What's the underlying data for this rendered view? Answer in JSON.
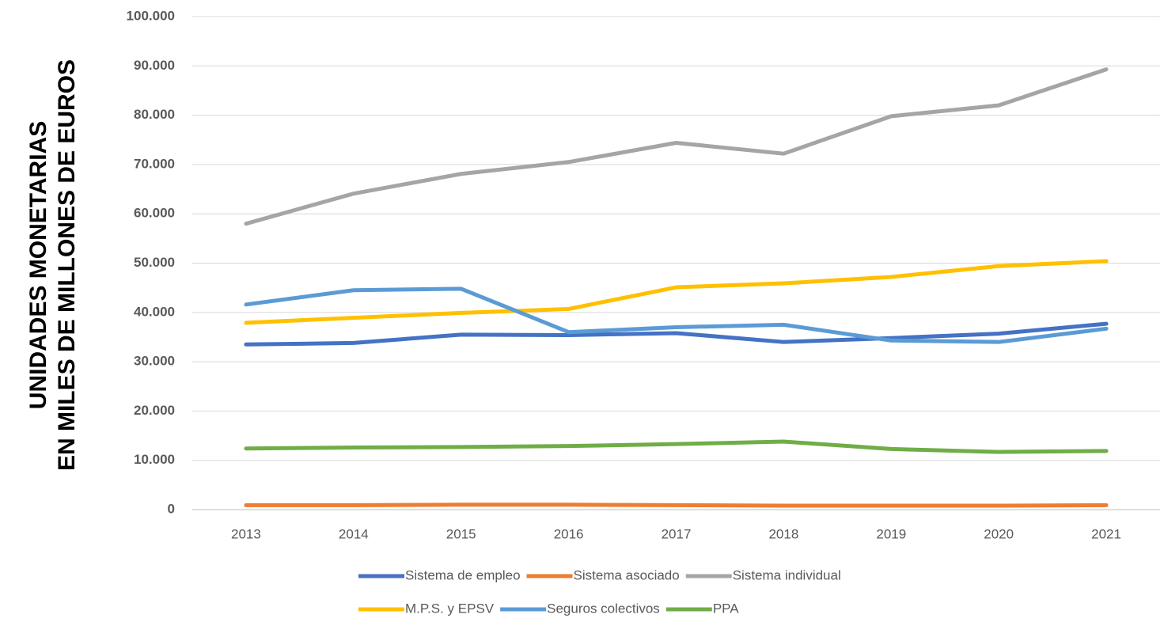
{
  "chart_data": {
    "type": "line",
    "y_label": [
      "UNIDADES  MONETARIAS",
      "EN MILES  DE  MILLONES  DE  EUROS"
    ],
    "categories": [
      "2013",
      "2014",
      "2015",
      "2016",
      "2017",
      "2018",
      "2019",
      "2020",
      "2021"
    ],
    "series": [
      {
        "name": "Sistema de empleo",
        "color": "#4472c4",
        "values": [
          33500,
          33800,
          35500,
          35400,
          35800,
          34000,
          34800,
          35700,
          37700
        ]
      },
      {
        "name": "Sistema asociado",
        "color": "#ed7d31",
        "values": [
          900,
          900,
          1000,
          1000,
          900,
          800,
          800,
          800,
          900
        ]
      },
      {
        "name": "Sistema individual",
        "color": "#a5a5a5",
        "values": [
          58000,
          64100,
          68100,
          70500,
          74400,
          72200,
          79800,
          82000,
          89300
        ]
      },
      {
        "name": "M.P.S. y EPSV",
        "color": "#ffc000",
        "values": [
          37900,
          38900,
          39900,
          40700,
          45100,
          45900,
          47200,
          49400,
          50400
        ]
      },
      {
        "name": "Seguros colectivos",
        "color": "#5b9bd5",
        "values": [
          41600,
          44500,
          44800,
          36000,
          37000,
          37500,
          34300,
          34000,
          36700
        ]
      },
      {
        "name": "PPA",
        "color": "#70ad47",
        "values": [
          12400,
          12600,
          12700,
          12900,
          13300,
          13800,
          12300,
          11700,
          11900
        ]
      }
    ],
    "ylim": [
      0,
      100000
    ],
    "yticks": [
      0,
      {
        "value": 10000,
        "label": "10.000"
      },
      {
        "value": 20000,
        "label": "20.000"
      },
      {
        "value": 30000,
        "label": "30.000"
      },
      {
        "value": 40000,
        "label": "40.000"
      },
      {
        "value": 50000,
        "label": "50.000"
      },
      {
        "value": 60000,
        "label": "60.000"
      },
      {
        "value": 70000,
        "label": "70.000"
      },
      {
        "value": 80000,
        "label": "80.000"
      },
      {
        "value": 90000,
        "label": "90.000"
      },
      {
        "value": 100000,
        "label": "100.000"
      }
    ],
    "grid": true,
    "legend": "bottom"
  }
}
